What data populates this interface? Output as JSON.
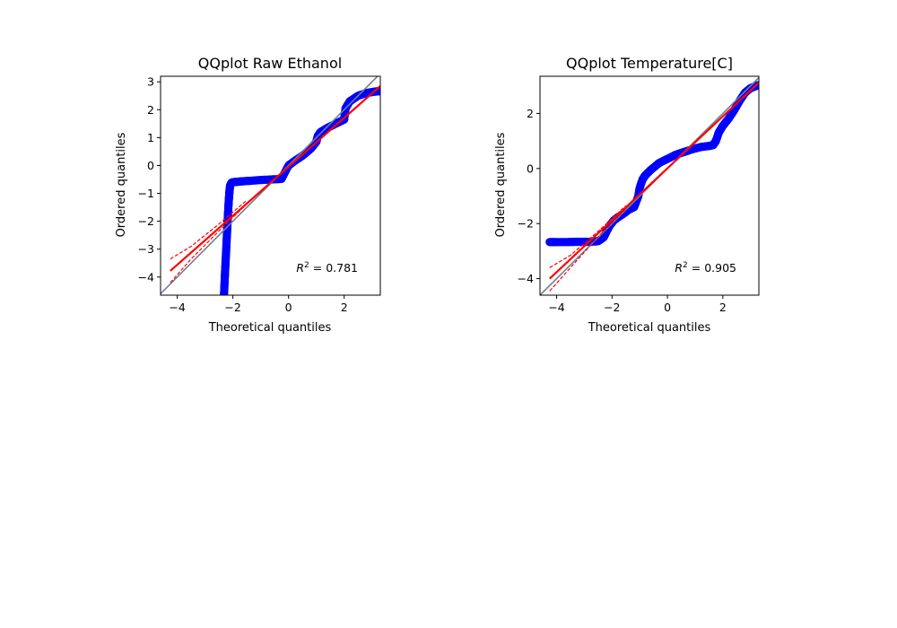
{
  "chart_data": [
    {
      "type": "scatter",
      "title": "QQplot Raw Ethanol",
      "xlabel": "Theoretical quantiles",
      "ylabel": "Ordered quantiles",
      "xlim": [
        -4.6,
        3.3
      ],
      "ylim": [
        -4.65,
        3.2
      ],
      "xticks": [
        -4,
        -2,
        0,
        2
      ],
      "yticks": [
        -4,
        -3,
        -2,
        -1,
        0,
        1,
        2,
        3
      ],
      "annotation": {
        "text": "R² = 0.781",
        "r_squared": 0.781,
        "position": "bottom-right"
      },
      "colors": {
        "points": "#0000ff",
        "fit": "#ff0000",
        "band": "#ff0000",
        "reference": "#708090"
      },
      "series": [
        {
          "kind": "points",
          "x": [
            -2.32,
            -2.3,
            -2.28,
            -2.26,
            -2.24,
            -2.22,
            -2.2,
            -2.18,
            -2.16,
            -2.14,
            -2.12,
            -2.1,
            -2.05,
            -2.0,
            -1.9,
            -1.7,
            -1.4,
            -1.0,
            -0.6,
            -0.25,
            0.0,
            0.2,
            0.5,
            0.8,
            1.0,
            1.05,
            1.15,
            1.4,
            1.7,
            2.0,
            2.05,
            2.2,
            2.5,
            2.8,
            3.1,
            3.3
          ],
          "y": [
            -4.65,
            -4.2,
            -3.8,
            -3.4,
            -3.0,
            -2.6,
            -2.2,
            -1.8,
            -1.45,
            -1.15,
            -0.9,
            -0.72,
            -0.62,
            -0.6,
            -0.59,
            -0.57,
            -0.55,
            -0.52,
            -0.5,
            -0.48,
            0.0,
            0.15,
            0.35,
            0.6,
            0.85,
            1.05,
            1.2,
            1.35,
            1.5,
            1.65,
            2.05,
            2.3,
            2.5,
            2.6,
            2.65,
            2.67
          ]
        },
        {
          "kind": "fit",
          "x": [
            -4.25,
            3.3
          ],
          "y": [
            -3.78,
            2.85
          ]
        },
        {
          "kind": "band-upper",
          "x": [
            -4.25,
            -3.5,
            -2.5,
            -1.5
          ],
          "y": [
            -3.35,
            -2.9,
            -2.1,
            -1.25
          ]
        },
        {
          "kind": "band-lower",
          "x": [
            -4.25,
            -3.5,
            -2.5,
            -1.5
          ],
          "y": [
            -4.2,
            -3.35,
            -2.35,
            -1.38
          ]
        },
        {
          "kind": "reference",
          "x": [
            -4.6,
            3.3
          ],
          "y": [
            -4.6,
            3.3
          ]
        }
      ]
    },
    {
      "type": "scatter",
      "title": "QQplot Temperature[C]",
      "xlabel": "Theoretical quantiles",
      "ylabel": "Ordered quantiles",
      "xlim": [
        -4.6,
        3.3
      ],
      "ylim": [
        -4.6,
        3.35
      ],
      "xticks": [
        -4,
        -2,
        0,
        2
      ],
      "yticks": [
        -4,
        -2,
        0,
        2
      ],
      "annotation": {
        "text": "R² = 0.905",
        "r_squared": 0.905,
        "position": "bottom-right"
      },
      "colors": {
        "points": "#0000ff",
        "fit": "#ff0000",
        "band": "#ff0000",
        "reference": "#708090"
      },
      "series": [
        {
          "kind": "points",
          "x": [
            -4.25,
            -4.0,
            -3.6,
            -3.2,
            -2.8,
            -2.5,
            -2.3,
            -2.1,
            -1.95,
            -1.8,
            -1.6,
            -1.4,
            -1.2,
            -1.05,
            -1.0,
            -0.9,
            -0.8,
            -0.6,
            -0.3,
            0.0,
            0.3,
            0.6,
            0.9,
            1.2,
            1.5,
            1.65,
            1.75,
            1.85,
            2.0,
            2.2,
            2.4,
            2.6,
            2.8,
            3.0,
            3.2,
            3.3
          ],
          "y": [
            -2.67,
            -2.67,
            -2.67,
            -2.66,
            -2.66,
            -2.64,
            -2.5,
            -2.1,
            -1.9,
            -1.78,
            -1.65,
            -1.5,
            -1.4,
            -1.0,
            -0.7,
            -0.4,
            -0.25,
            -0.05,
            0.2,
            0.35,
            0.5,
            0.6,
            0.7,
            0.78,
            0.82,
            0.85,
            1.0,
            1.3,
            1.55,
            1.8,
            2.1,
            2.45,
            2.75,
            2.92,
            3.0,
            3.03
          ]
        },
        {
          "kind": "fit",
          "x": [
            -4.25,
            3.3
          ],
          "y": [
            -4.0,
            3.12
          ]
        },
        {
          "kind": "band-upper",
          "x": [
            -4.25,
            -3.5,
            -2.5,
            -1.5
          ],
          "y": [
            -3.6,
            -3.15,
            -2.28,
            -1.35
          ]
        },
        {
          "kind": "band-lower",
          "x": [
            -4.25,
            -3.5,
            -2.5,
            -1.5
          ],
          "y": [
            -4.45,
            -3.6,
            -2.48,
            -1.47
          ]
        },
        {
          "kind": "reference",
          "x": [
            -4.6,
            3.35
          ],
          "y": [
            -4.6,
            3.35
          ]
        }
      ]
    }
  ]
}
